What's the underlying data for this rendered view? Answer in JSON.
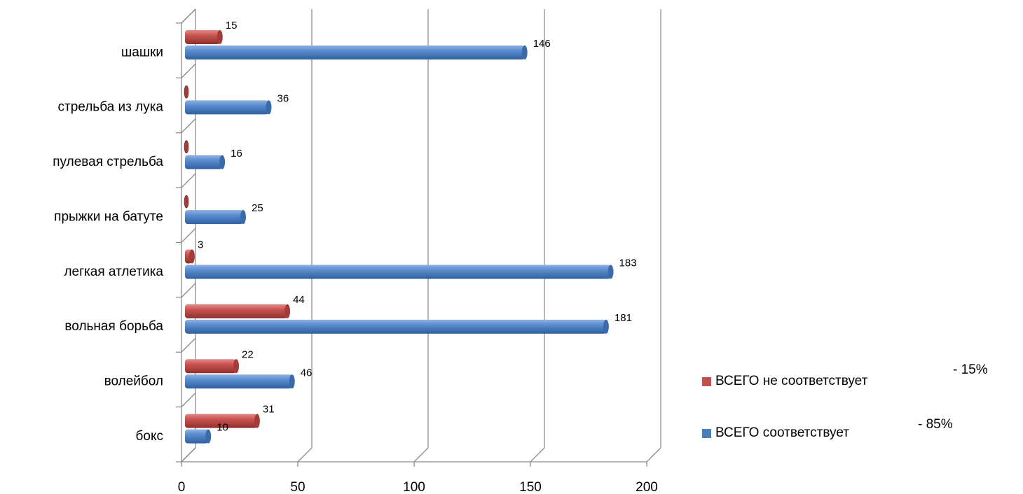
{
  "chart_data": {
    "type": "bar",
    "orientation": "horizontal",
    "categories": [
      "бокс",
      "волейбол",
      "вольная борьба",
      "легкая атлетика",
      "прыжки на батуте",
      "пулевая стрельба",
      "стрельба из лука",
      "шашки"
    ],
    "series": [
      {
        "name": "ВСЕГО соответствует",
        "color": "#4a7ebb",
        "values": [
          10,
          46,
          181,
          183,
          25,
          16,
          36,
          146
        ],
        "labels": [
          "10",
          "46",
          "181",
          "183",
          "25",
          "16",
          "36",
          "146"
        ]
      },
      {
        "name": "ВСЕГО не соответствует",
        "color": "#c0504d",
        "values": [
          31,
          22,
          44,
          3,
          0,
          0,
          0,
          15
        ],
        "labels": [
          "31",
          "22",
          "44",
          "3",
          "",
          "",
          "",
          "15"
        ]
      }
    ],
    "xlim": [
      0,
      200
    ],
    "xticks": [
      "0",
      "50",
      "100",
      "150",
      "200"
    ],
    "grid": true,
    "legend_position": "right",
    "legend_pct": [
      "- 15%",
      "- 85%"
    ]
  }
}
